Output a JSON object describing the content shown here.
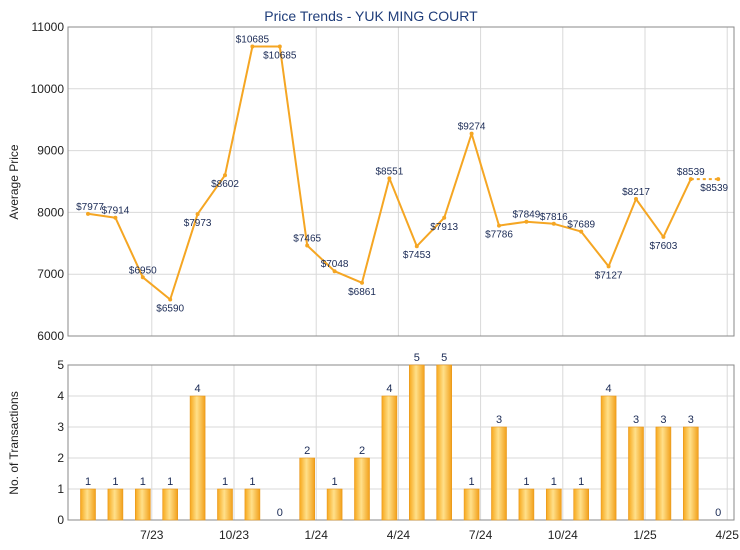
{
  "chart_data": [
    {
      "type": "line",
      "title": "Price Trends - YUK MING COURT",
      "ylabel": "Average Price",
      "ylim": [
        6000,
        11000
      ],
      "yticks": [
        6000,
        7000,
        8000,
        9000,
        10000,
        11000
      ],
      "line_color": "#f5a623",
      "points": [
        {
          "x": 0,
          "y": 7977,
          "label": "$7977"
        },
        {
          "x": 1,
          "y": 7914,
          "label": "$7914"
        },
        {
          "x": 2,
          "y": 6950,
          "label": "$6950"
        },
        {
          "x": 3,
          "y": 6590,
          "label": "$6590"
        },
        {
          "x": 4,
          "y": 7973,
          "label": "$7973"
        },
        {
          "x": 5,
          "y": 8602,
          "label": "$8602"
        },
        {
          "x": 6,
          "y": 10685,
          "label": "$10685"
        },
        {
          "x": 7,
          "y": 10685,
          "label": "$10685"
        },
        {
          "x": 8,
          "y": 7465,
          "label": "$7465"
        },
        {
          "x": 9,
          "y": 7048,
          "label": "$7048"
        },
        {
          "x": 10,
          "y": 6861,
          "label": "$6861"
        },
        {
          "x": 11,
          "y": 8551,
          "label": "$8551"
        },
        {
          "x": 12,
          "y": 7453,
          "label": "$7453"
        },
        {
          "x": 13,
          "y": 7913,
          "label": "$7913"
        },
        {
          "x": 14,
          "y": 9274,
          "label": "$9274"
        },
        {
          "x": 15,
          "y": 7786,
          "label": "$7786"
        },
        {
          "x": 16,
          "y": 7849,
          "label": "$7849"
        },
        {
          "x": 17,
          "y": 7816,
          "label": "$7816"
        },
        {
          "x": 18,
          "y": 7689,
          "label": "$7689"
        },
        {
          "x": 19,
          "y": 7127,
          "label": "$7127"
        },
        {
          "x": 20,
          "y": 8217,
          "label": "$8217"
        },
        {
          "x": 21,
          "y": 7603,
          "label": "$7603"
        },
        {
          "x": 22,
          "y": 8539,
          "label": "$8539"
        },
        {
          "x": 23,
          "y": 8539,
          "label": "$8539"
        }
      ]
    },
    {
      "type": "bar",
      "ylabel": "No. of Transactions",
      "ylim": [
        0,
        5
      ],
      "yticks": [
        0,
        1,
        2,
        3,
        4,
        5
      ],
      "bar_color": "#f5a623",
      "values": [
        1,
        1,
        1,
        1,
        4,
        1,
        1,
        0,
        2,
        1,
        2,
        4,
        5,
        5,
        1,
        3,
        1,
        1,
        1,
        4,
        3,
        3,
        3,
        0
      ],
      "xticks": [
        {
          "index": 2,
          "label": "7/23"
        },
        {
          "index": 5,
          "label": "10/23"
        },
        {
          "index": 8,
          "label": "1/24"
        },
        {
          "index": 11,
          "label": "4/24"
        },
        {
          "index": 14,
          "label": "7/24"
        },
        {
          "index": 17,
          "label": "10/24"
        },
        {
          "index": 20,
          "label": "1/25"
        },
        {
          "index": 23,
          "label": "4/25"
        }
      ]
    }
  ]
}
